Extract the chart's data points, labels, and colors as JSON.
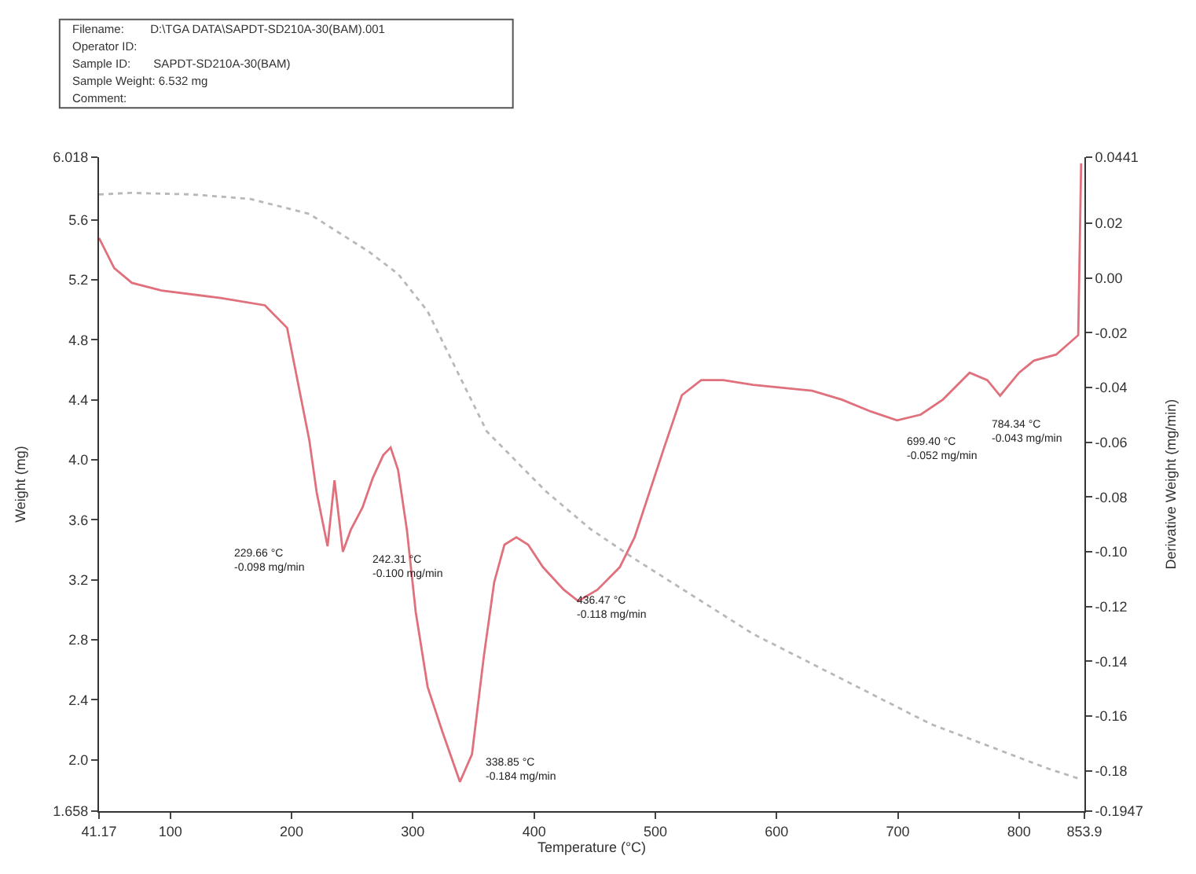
{
  "chart_data": {
    "type": "line",
    "xlabel": "Temperature (°C)",
    "ylabel": "Weight (mg)",
    "y2label": "Derivative Weight (mg/min)",
    "xlim": [
      41.17,
      853.9
    ],
    "xticks": [
      {
        "value": 41.17,
        "label": "41.17"
      },
      100,
      200,
      300,
      400,
      500,
      600,
      700,
      800,
      {
        "value": 853.9,
        "label": "853.9"
      }
    ],
    "ylim": [
      1.658,
      6.018
    ],
    "yticks": [
      {
        "value": 1.658,
        "label": "1.658"
      },
      {
        "value": 2.0,
        "label": "2.0"
      },
      {
        "value": 2.4,
        "label": "2.4"
      },
      {
        "value": 2.8,
        "label": "2.8"
      },
      {
        "value": 3.2,
        "label": "3.2"
      },
      {
        "value": 3.6,
        "label": "3.6"
      },
      {
        "value": 4.0,
        "label": "4.0"
      },
      {
        "value": 4.4,
        "label": "4.4"
      },
      {
        "value": 4.8,
        "label": "4.8"
      },
      {
        "value": 5.2,
        "label": "5.2"
      },
      {
        "value": 5.6,
        "label": "5.6"
      },
      {
        "value": 6.018,
        "label": "6.018"
      }
    ],
    "y2lim": [
      -0.1947,
      0.0441
    ],
    "y2ticks": [
      {
        "value": -0.1947,
        "label": "-0.1947"
      },
      {
        "value": -0.18,
        "label": "-0.18"
      },
      {
        "value": -0.16,
        "label": "-0.16"
      },
      {
        "value": -0.14,
        "label": "-0.14"
      },
      {
        "value": -0.12,
        "label": "-0.12"
      },
      {
        "value": -0.1,
        "label": "-0.10"
      },
      {
        "value": -0.08,
        "label": "-0.08"
      },
      {
        "value": -0.06,
        "label": "-0.06"
      },
      {
        "value": -0.04,
        "label": "-0.04"
      },
      {
        "value": -0.02,
        "label": "-0.02"
      },
      {
        "value": 0.0,
        "label": "0.00"
      },
      {
        "value": 0.02,
        "label": "0.02"
      },
      {
        "value": 0.0441,
        "label": "0.0441"
      }
    ],
    "marker": "none",
    "series": [
      {
        "color": "#b8b8b8",
        "line_style": "dotted",
        "x": [
          41.2,
          68.3,
          117.1,
          165.9,
          214.6,
          263.4,
          287.8,
          312.2,
          336.6,
          361.0,
          385.4,
          409.8,
          446.3,
          482.9,
          531.7,
          580.5,
          629.3,
          678.0,
          726.8,
          775.6,
          824.4,
          851.2
        ],
        "values": [
          5.77,
          5.78,
          5.77,
          5.74,
          5.64,
          5.39,
          5.24,
          4.99,
          4.59,
          4.19,
          3.99,
          3.79,
          3.54,
          3.34,
          3.09,
          2.84,
          2.64,
          2.44,
          2.24,
          2.09,
          1.94,
          1.87
        ]
      },
      {
        "color": "#e0707c",
        "line_style": "solid",
        "axis": "y2",
        "x": [
          41.2,
          53.7,
          68.3,
          92.7,
          141.5,
          178.0,
          196.3,
          202.4,
          214.6,
          220.7,
          229.66,
          235.4,
          242.31,
          248.8,
          258.5,
          267.1,
          275.6,
          281.7,
          287.8,
          295.1,
          302.4,
          312.2,
          324.4,
          338.85,
          348.8,
          358.5,
          367.1,
          375.6,
          385.4,
          395.1,
          407.3,
          424.4,
          436.47,
          452.4,
          470.7,
          482.9,
          495.1,
          507.3,
          521.9,
          537.8,
          556.1,
          580.5,
          604.9,
          629.3,
          653.7,
          678.0,
          699.4,
          718.9,
          737.2,
          759.2,
          773.8,
          784.34,
          800.0,
          812.2,
          830.5,
          848.8,
          851.2
        ],
        "values": [
          0.0146,
          0.0036,
          -0.0018,
          -0.0046,
          -0.0073,
          -0.01,
          -0.0182,
          -0.0319,
          -0.0592,
          -0.0783,
          -0.098,
          -0.0739,
          -0.1,
          -0.092,
          -0.0838,
          -0.0729,
          -0.0647,
          -0.0619,
          -0.0701,
          -0.092,
          -0.122,
          -0.1493,
          -0.1657,
          -0.184,
          -0.1739,
          -0.1384,
          -0.1111,
          -0.0974,
          -0.0947,
          -0.0974,
          -0.1056,
          -0.1138,
          -0.118,
          -0.1138,
          -0.1056,
          -0.0947,
          -0.0783,
          -0.0619,
          -0.0428,
          -0.0373,
          -0.0373,
          -0.039,
          -0.0401,
          -0.0412,
          -0.0444,
          -0.0488,
          -0.052,
          -0.0499,
          -0.0444,
          -0.0346,
          -0.0373,
          -0.043,
          -0.0346,
          -0.0302,
          -0.028,
          -0.0209,
          0.0419
        ]
      }
    ],
    "annotations": [
      "Filename:        D:\\TGA DATA\\SAPDT-SD210A-30(BAM).001",
      "Operator ID:",
      "Sample ID:       SAPDT-SD210A-30(BAM)",
      "Sample Weight: 6.532 mg",
      "Comment:",
      "229.66 °C\n-0.098 mg/min",
      "242.31 °C\n-0.100 mg/min",
      "338.85 °C\n-0.184 mg/min",
      "436.47 °C\n-0.118 mg/min",
      "699.40 °C\n-0.052 mg/min",
      "784.34 °C\n-0.043 mg/min"
    ]
  }
}
